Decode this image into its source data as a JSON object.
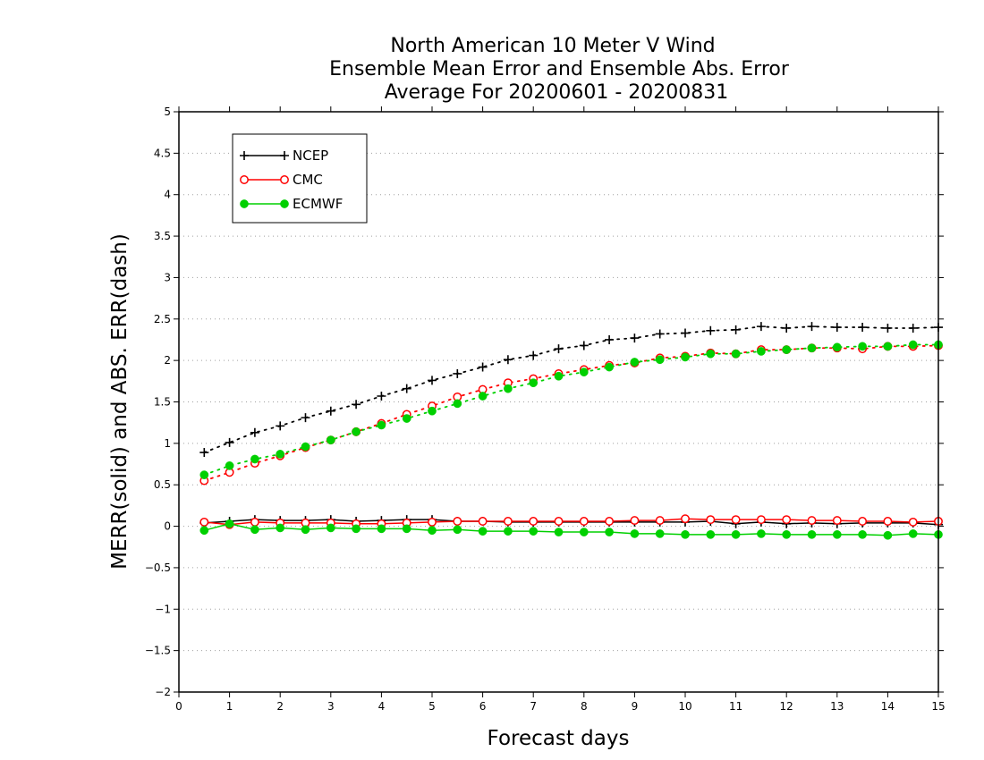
{
  "chart_data": {
    "type": "line",
    "title": [
      "North American 10 Meter V Wind",
      "Ensemble Mean Error and Ensemble Abs. Error",
      "Average For 20200601 - 20200831"
    ],
    "xlabel": "Forecast days",
    "ylabel": "MERR(solid) and ABS. ERR(dash)",
    "xlim": [
      0,
      15
    ],
    "ylim": [
      -2,
      5
    ],
    "xticks": [
      "0",
      "1",
      "2",
      "3",
      "4",
      "5",
      "6",
      "7",
      "8",
      "9",
      "10",
      "11",
      "12",
      "13",
      "14",
      "15"
    ],
    "yticks": [
      "−2",
      "−1.5",
      "−1",
      "−0.5",
      "0",
      "0.5",
      "1",
      "1.5",
      "2",
      "2.5",
      "3",
      "3.5",
      "4",
      "4.5",
      "5"
    ],
    "grid": true,
    "legend_position": "top-left",
    "x": [
      0.5,
      1,
      1.5,
      2,
      2.5,
      3,
      3.5,
      4,
      4.5,
      5,
      5.5,
      6,
      6.5,
      7,
      7.5,
      8,
      8.5,
      9,
      9.5,
      10,
      10.5,
      11,
      11.5,
      12,
      12.5,
      13,
      13.5,
      14,
      14.5,
      15
    ],
    "series": [
      {
        "name": "NCEP",
        "color": "#000000",
        "marker": "plus",
        "merr": [
          0.04,
          0.06,
          0.08,
          0.07,
          0.07,
          0.08,
          0.06,
          0.07,
          0.08,
          0.08,
          0.06,
          0.06,
          0.05,
          0.05,
          0.05,
          0.05,
          0.05,
          0.05,
          0.05,
          0.05,
          0.06,
          0.03,
          0.05,
          0.03,
          0.04,
          0.03,
          0.04,
          0.04,
          0.04,
          0.02
        ],
        "abserr": [
          0.89,
          1.01,
          1.13,
          1.21,
          1.31,
          1.39,
          1.47,
          1.57,
          1.66,
          1.76,
          1.84,
          1.92,
          2.01,
          2.06,
          2.14,
          2.18,
          2.25,
          2.27,
          2.32,
          2.33,
          2.36,
          2.37,
          2.41,
          2.39,
          2.41,
          2.4,
          2.4,
          2.39,
          2.39,
          2.4
        ]
      },
      {
        "name": "CMC",
        "color": "#ff0000",
        "marker": "open-circle",
        "merr": [
          0.05,
          0.02,
          0.05,
          0.04,
          0.04,
          0.04,
          0.03,
          0.03,
          0.04,
          0.05,
          0.06,
          0.06,
          0.06,
          0.06,
          0.06,
          0.06,
          0.06,
          0.07,
          0.07,
          0.09,
          0.08,
          0.08,
          0.08,
          0.08,
          0.07,
          0.07,
          0.06,
          0.06,
          0.05,
          0.06
        ],
        "abserr": [
          0.55,
          0.65,
          0.76,
          0.85,
          0.95,
          1.04,
          1.14,
          1.24,
          1.35,
          1.45,
          1.56,
          1.65,
          1.73,
          1.78,
          1.84,
          1.89,
          1.94,
          1.97,
          2.03,
          2.05,
          2.09,
          2.08,
          2.13,
          2.13,
          2.15,
          2.15,
          2.14,
          2.17,
          2.17,
          2.18
        ]
      },
      {
        "name": "ECMWF",
        "color": "#00d000",
        "marker": "filled-circle",
        "merr": [
          -0.05,
          0.03,
          -0.04,
          -0.02,
          -0.04,
          -0.02,
          -0.03,
          -0.03,
          -0.03,
          -0.05,
          -0.04,
          -0.06,
          -0.06,
          -0.06,
          -0.07,
          -0.07,
          -0.07,
          -0.09,
          -0.09,
          -0.1,
          -0.1,
          -0.1,
          -0.09,
          -0.1,
          -0.1,
          -0.1,
          -0.1,
          -0.11,
          -0.09,
          -0.1
        ],
        "abserr": [
          0.62,
          0.73,
          0.81,
          0.87,
          0.96,
          1.04,
          1.14,
          1.22,
          1.3,
          1.39,
          1.48,
          1.57,
          1.66,
          1.73,
          1.81,
          1.86,
          1.92,
          1.98,
          2.01,
          2.04,
          2.08,
          2.08,
          2.11,
          2.13,
          2.15,
          2.16,
          2.17,
          2.17,
          2.19,
          2.19
        ]
      }
    ]
  }
}
